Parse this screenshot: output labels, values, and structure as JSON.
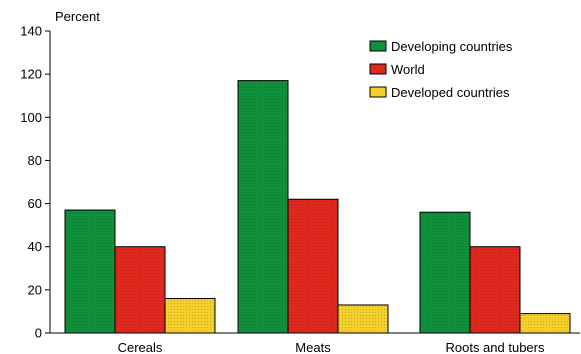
{
  "chart_data": {
    "type": "bar",
    "title": "",
    "ylabel": "Percent",
    "xlabel": "",
    "ylim": [
      0,
      140
    ],
    "yticks": [
      0,
      20,
      40,
      60,
      80,
      100,
      120,
      140
    ],
    "grid": false,
    "legend_position": "top-right",
    "categories": [
      "Cereals",
      "Meats",
      "Roots and tubers"
    ],
    "series": [
      {
        "name": "Developing countries",
        "color": "#10903a",
        "values": [
          57,
          117,
          56
        ]
      },
      {
        "name": "World",
        "color": "#e0281e",
        "values": [
          40,
          62,
          40
        ]
      },
      {
        "name": "Developed countries",
        "color": "#f5d02c",
        "values": [
          16,
          13,
          9
        ]
      }
    ]
  }
}
